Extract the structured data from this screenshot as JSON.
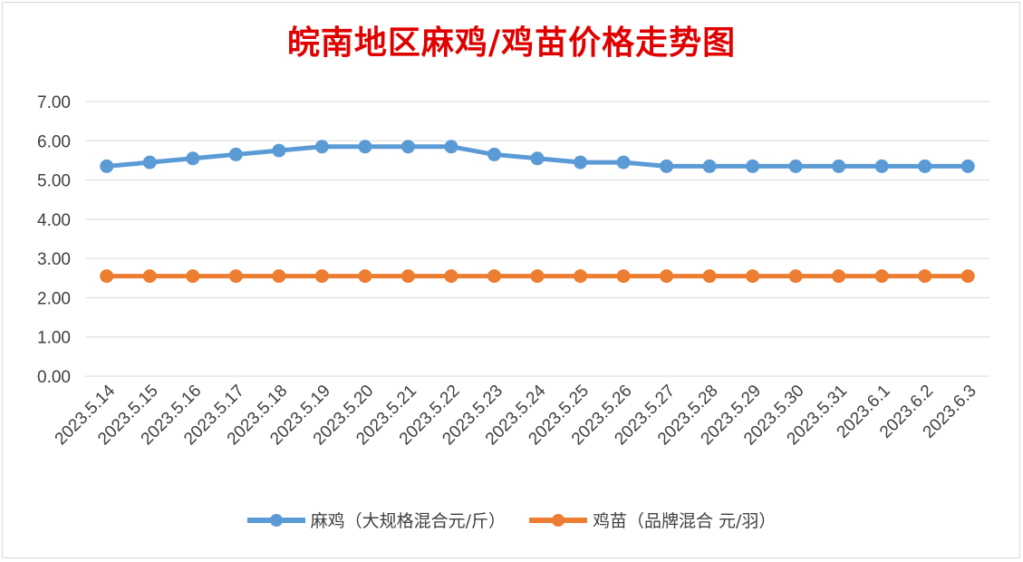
{
  "chart_data": {
    "type": "line",
    "title": "皖南地区麻鸡/鸡苗价格走势图",
    "categories": [
      "2023.5.14",
      "2023.5.15",
      "2023.5.16",
      "2023.5.17",
      "2023.5.18",
      "2023.5.19",
      "2023.5.20",
      "2023.5.21",
      "2023.5.22",
      "2023.5.23",
      "2023.5.24",
      "2023.5.25",
      "2023.5.26",
      "2023.5.27",
      "2023.5.28",
      "2023.5.29",
      "2023.5.30",
      "2023.5.31",
      "2023.6.1",
      "2023.6.2",
      "2023.6.3"
    ],
    "series": [
      {
        "name": "麻鸡（大规格混合元/斤）",
        "color": "#5b9bd5",
        "values": [
          5.35,
          5.45,
          5.55,
          5.65,
          5.75,
          5.85,
          5.85,
          5.85,
          5.85,
          5.65,
          5.55,
          5.45,
          5.45,
          5.35,
          5.35,
          5.35,
          5.35,
          5.35,
          5.35,
          5.35,
          5.35
        ]
      },
      {
        "name": "鸡苗（品牌混合 元/羽）",
        "color": "#ed7d31",
        "values": [
          2.55,
          2.55,
          2.55,
          2.55,
          2.55,
          2.55,
          2.55,
          2.55,
          2.55,
          2.55,
          2.55,
          2.55,
          2.55,
          2.55,
          2.55,
          2.55,
          2.55,
          2.55,
          2.55,
          2.55,
          2.55
        ]
      }
    ],
    "yticks": [
      "0.00",
      "1.00",
      "2.00",
      "3.00",
      "4.00",
      "5.00",
      "6.00",
      "7.00"
    ],
    "ylim": [
      0,
      7
    ],
    "grid": true,
    "legend_position": "bottom"
  }
}
